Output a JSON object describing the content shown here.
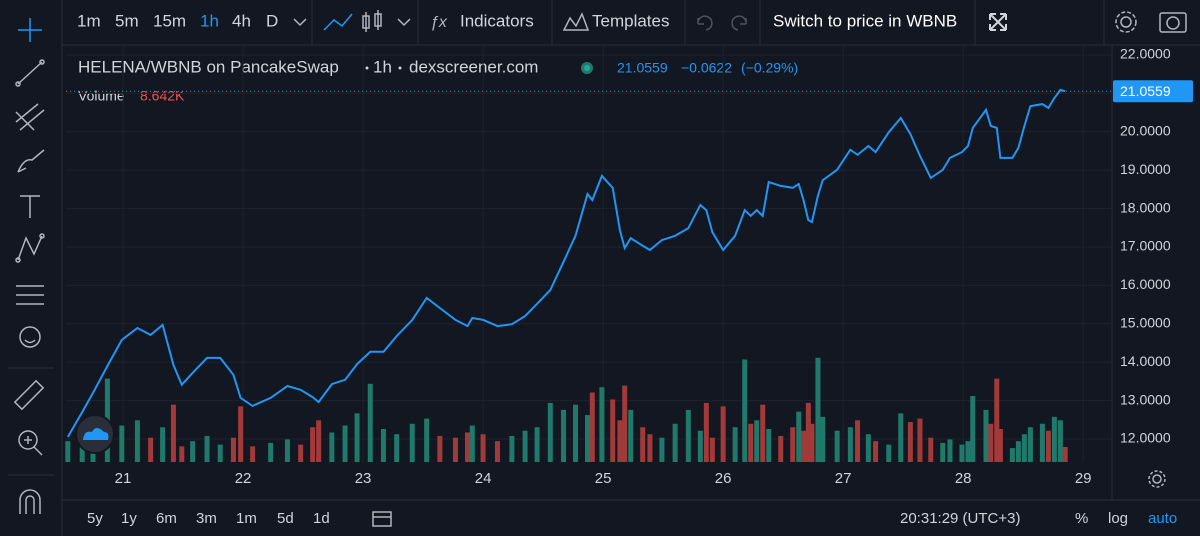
{
  "toolbar": {
    "intervals": [
      "1m",
      "5m",
      "15m",
      "1h",
      "4h",
      "D"
    ],
    "active_interval": 3,
    "indicators": "Indicators",
    "templates": "Templates",
    "switch": "Switch to price in WBNB"
  },
  "bottom_bar": {
    "ranges": [
      "5y",
      "1y",
      "6m",
      "3m",
      "1m",
      "5d",
      "1d"
    ],
    "time": "20:31:29 (UTC+3)",
    "scale_options": [
      "%",
      "log",
      "auto"
    ],
    "active_scale_option": 2
  },
  "chart_data": {
    "type": "line",
    "title": "HELENA/WBNB on PancakeSwap",
    "interval": "1h",
    "source": "dexscreener.com",
    "x": [
      20.54,
      20.66,
      20.75,
      20.87,
      20.99,
      21.12,
      21.23,
      21.33,
      21.42,
      21.49,
      21.58,
      21.7,
      21.81,
      21.92,
      21.98,
      22.08,
      22.23,
      22.37,
      22.48,
      22.58,
      22.63,
      22.74,
      22.85,
      22.95,
      23.06,
      23.17,
      23.28,
      23.41,
      23.53,
      23.64,
      23.77,
      23.87,
      23.91,
      24.0,
      24.12,
      24.24,
      24.35,
      24.45,
      24.56,
      24.67,
      24.77,
      24.87,
      24.91,
      24.99,
      25.08,
      25.14,
      25.18,
      25.23,
      25.33,
      25.39,
      25.49,
      25.6,
      25.71,
      25.81,
      25.86,
      25.91,
      26.0,
      26.1,
      26.18,
      26.23,
      26.28,
      26.33,
      26.38,
      26.48,
      26.58,
      26.63,
      26.67,
      26.71,
      26.74,
      26.79,
      26.83,
      26.95,
      27.06,
      27.12,
      27.21,
      27.27,
      27.38,
      27.48,
      27.56,
      27.64,
      27.73,
      27.83,
      27.89,
      27.99,
      28.04,
      28.08,
      28.19,
      28.23,
      28.28,
      28.31,
      28.41,
      28.46,
      28.51,
      28.56,
      28.66,
      28.71,
      28.76,
      28.81,
      28.85
    ],
    "xlim": [
      20.525,
      29.24
    ],
    "xticks": [
      21,
      22,
      23,
      24,
      25,
      26,
      27,
      28,
      29
    ],
    "ylim": [
      11.4,
      22.26
    ],
    "yticks": [
      {
        "value": 12,
        "label": "12.0000"
      },
      {
        "value": 13,
        "label": "13.0000"
      },
      {
        "value": 14,
        "label": "14.0000"
      },
      {
        "value": 15,
        "label": "15.0000"
      },
      {
        "value": 16,
        "label": "16.0000"
      },
      {
        "value": 17,
        "label": "17.0000"
      },
      {
        "value": 18,
        "label": "18.0000"
      },
      {
        "value": 19,
        "label": "19.0000"
      },
      {
        "value": 20,
        "label": "20.0000"
      },
      {
        "value": 21,
        "label": "21.0000"
      },
      {
        "value": 22,
        "label": "22.0000"
      }
    ],
    "grid": true,
    "series": [
      {
        "name": "HELENA/WBNB",
        "color": "#2196f3",
        "values": [
          12.05,
          12.7,
          13.2,
          13.9,
          14.58,
          14.89,
          14.71,
          14.97,
          13.93,
          13.41,
          13.72,
          14.11,
          14.11,
          13.67,
          13.07,
          12.86,
          13.07,
          13.38,
          13.28,
          13.09,
          12.96,
          13.43,
          13.54,
          13.95,
          14.27,
          14.27,
          14.68,
          15.1,
          15.67,
          15.41,
          15.1,
          14.94,
          15.15,
          15.1,
          14.94,
          14.99,
          15.2,
          15.52,
          15.88,
          16.61,
          17.29,
          18.38,
          18.22,
          18.85,
          18.54,
          17.44,
          16.97,
          17.23,
          17.03,
          16.92,
          17.18,
          17.29,
          17.49,
          18.09,
          17.96,
          17.39,
          16.92,
          17.29,
          17.96,
          17.81,
          17.96,
          17.81,
          18.69,
          18.59,
          18.54,
          18.64,
          18.22,
          17.7,
          17.65,
          18.33,
          18.74,
          19.01,
          19.53,
          19.4,
          19.63,
          19.47,
          19.99,
          20.36,
          19.94,
          19.37,
          18.8,
          19.01,
          19.32,
          19.47,
          19.63,
          20.1,
          20.57,
          20.15,
          20.1,
          19.32,
          19.32,
          19.58,
          20.15,
          20.67,
          20.72,
          20.62,
          20.88,
          21.09,
          21.0559
        ],
        "last": {
          "value": 21.0559,
          "label": "21.0559"
        },
        "change": {
          "value": -0.0622,
          "label": "−0.0622"
        },
        "change_pct": {
          "value": -0.29,
          "label": "(−0.29%)"
        }
      },
      {
        "name": "Volume",
        "type": "bar",
        "up_color": "#1f7a6c",
        "down_color": "#a33a3a",
        "vlim": [
          0,
          240000
        ],
        "values": [
          12000,
          18000,
          22000,
          48000,
          21000,
          24000,
          14000,
          20000,
          33000,
          9000,
          12000,
          15000,
          10000,
          14000,
          32000,
          9000,
          11000,
          13000,
          10000,
          20000,
          24000,
          17000,
          21000,
          28000,
          45000,
          19000,
          16000,
          22000,
          25000,
          15000,
          14000,
          17000,
          21000,
          16000,
          12000,
          15000,
          18000,
          20000,
          34000,
          30000,
          33000,
          27000,
          40000,
          43000,
          36000,
          24000,
          44000,
          30000,
          20000,
          16000,
          14000,
          22000,
          30000,
          18000,
          34000,
          14000,
          32000,
          20000,
          59000,
          22000,
          24000,
          33000,
          19000,
          15000,
          20000,
          29000,
          18000,
          34000,
          22000,
          60000,
          26000,
          18000,
          20000,
          24000,
          16000,
          12000,
          10000,
          28000,
          23000,
          25000,
          14000,
          11000,
          13000,
          10000,
          12000,
          38000,
          30000,
          22000,
          48000,
          19000,
          8000,
          12000,
          16000,
          20000,
          22000,
          18000,
          26000,
          24000,
          8642
        ],
        "last": {
          "value": 8642,
          "label": "8.642K"
        }
      }
    ]
  }
}
